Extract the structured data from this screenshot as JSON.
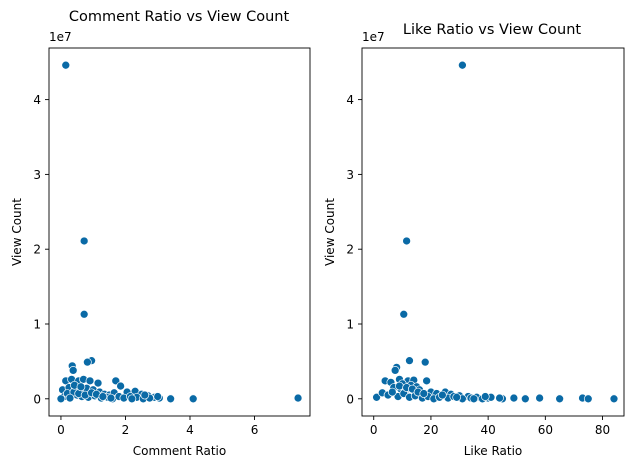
{
  "chart_data": [
    {
      "type": "scatter",
      "title": "Comment Ratio vs View Count",
      "xlabel": "Comment Ratio",
      "ylabel": "View Count",
      "xlim": [
        -0.37,
        7.72
      ],
      "ylim": [
        -2300000,
        46900000
      ],
      "x_ticks": [
        0,
        2,
        4,
        6
      ],
      "x_tick_labels": [
        "0",
        "2",
        "4",
        "6"
      ],
      "y_ticks": [
        0,
        10000000,
        20000000,
        30000000,
        40000000
      ],
      "y_tick_labels": [
        "0",
        "1",
        "2",
        "3",
        "4"
      ],
      "y_offset_label": "1e7",
      "grid": false,
      "marker_color": "#0a6aa6",
      "points": [
        [
          0.15,
          44600000
        ],
        [
          0.72,
          21100000
        ],
        [
          0.72,
          11300000
        ],
        [
          0.95,
          5100000
        ],
        [
          0.82,
          4900000
        ],
        [
          0.35,
          4400000
        ],
        [
          0.38,
          3800000
        ],
        [
          0.15,
          2400000
        ],
        [
          0.33,
          2600000
        ],
        [
          0.55,
          2400000
        ],
        [
          0.7,
          2600000
        ],
        [
          0.9,
          2400000
        ],
        [
          1.15,
          2100000
        ],
        [
          1.7,
          2400000
        ],
        [
          1.85,
          1700000
        ],
        [
          2.3,
          1000000
        ],
        [
          2.05,
          900000
        ],
        [
          0.05,
          1200000
        ],
        [
          0.25,
          1500000
        ],
        [
          0.45,
          1300000
        ],
        [
          0.6,
          1100000
        ],
        [
          0.8,
          1400000
        ],
        [
          1.0,
          1200000
        ],
        [
          1.2,
          900000
        ],
        [
          1.35,
          600000
        ],
        [
          1.5,
          500000
        ],
        [
          1.65,
          800000
        ],
        [
          2.5,
          600000
        ],
        [
          2.7,
          400000
        ],
        [
          2.9,
          200000
        ],
        [
          3.05,
          100000
        ],
        [
          3.4,
          0
        ],
        [
          4.1,
          0
        ],
        [
          7.35,
          100000
        ],
        [
          0.1,
          300000
        ],
        [
          0.3,
          200000
        ],
        [
          0.5,
          500000
        ],
        [
          0.65,
          300000
        ],
        [
          0.85,
          200000
        ],
        [
          1.05,
          400000
        ],
        [
          1.25,
          100000
        ],
        [
          1.45,
          200000
        ],
        [
          1.6,
          0
        ],
        [
          1.8,
          300000
        ],
        [
          1.95,
          100000
        ],
        [
          2.15,
          300000
        ],
        [
          2.35,
          200000
        ],
        [
          2.55,
          0
        ],
        [
          2.75,
          100000
        ],
        [
          0.0,
          0
        ],
        [
          0.2,
          700000
        ],
        [
          0.4,
          900000
        ],
        [
          0.55,
          700000
        ],
        [
          0.75,
          500000
        ],
        [
          0.95,
          800000
        ],
        [
          1.1,
          600000
        ],
        [
          1.3,
          300000
        ],
        [
          1.55,
          100000
        ],
        [
          2.2,
          0
        ],
        [
          2.6,
          500000
        ],
        [
          3.0,
          300000
        ],
        [
          0.42,
          1800000
        ],
        [
          0.62,
          1600000
        ],
        [
          0.28,
          100000
        ]
      ]
    },
    {
      "type": "scatter",
      "title": "Like Ratio vs View Count",
      "xlabel": "Like Ratio",
      "ylabel": "View Count",
      "xlim": [
        -4.1,
        87.5
      ],
      "ylim": [
        -2300000,
        46900000
      ],
      "x_ticks": [
        0,
        20,
        40,
        60,
        80
      ],
      "x_tick_labels": [
        "0",
        "20",
        "40",
        "60",
        "80"
      ],
      "y_ticks": [
        0,
        10000000,
        20000000,
        30000000,
        40000000
      ],
      "y_tick_labels": [
        "0",
        "1",
        "2",
        "3",
        "4"
      ],
      "y_offset_label": "1e7",
      "grid": false,
      "marker_color": "#0a6aa6",
      "points": [
        [
          31,
          44600000
        ],
        [
          11.5,
          21100000
        ],
        [
          10.5,
          11300000
        ],
        [
          12.5,
          5100000
        ],
        [
          18,
          4900000
        ],
        [
          8,
          4200000
        ],
        [
          7.5,
          3800000
        ],
        [
          4,
          2400000
        ],
        [
          6,
          2200000
        ],
        [
          9,
          2600000
        ],
        [
          12,
          2400000
        ],
        [
          14,
          2500000
        ],
        [
          18.5,
          2400000
        ],
        [
          10,
          2000000
        ],
        [
          13,
          1800000
        ],
        [
          15,
          1600000
        ],
        [
          7,
          1500000
        ],
        [
          9.5,
          1300000
        ],
        [
          11,
          1100000
        ],
        [
          16,
          1200000
        ],
        [
          20,
          900000
        ],
        [
          22,
          700000
        ],
        [
          25,
          900000
        ],
        [
          27,
          600000
        ],
        [
          30,
          400000
        ],
        [
          33,
          300000
        ],
        [
          36,
          200000
        ],
        [
          40,
          100000
        ],
        [
          45,
          0
        ],
        [
          49,
          100000
        ],
        [
          53,
          0
        ],
        [
          58,
          100000
        ],
        [
          65,
          0
        ],
        [
          73,
          100000
        ],
        [
          75,
          0
        ],
        [
          84,
          0
        ],
        [
          1,
          200000
        ],
        [
          3,
          800000
        ],
        [
          5,
          500000
        ],
        [
          8.5,
          300000
        ],
        [
          10.5,
          700000
        ],
        [
          12.5,
          200000
        ],
        [
          14.5,
          400000
        ],
        [
          17,
          100000
        ],
        [
          19,
          300000
        ],
        [
          21,
          0
        ],
        [
          23,
          200000
        ],
        [
          26,
          100000
        ],
        [
          28,
          300000
        ],
        [
          31,
          0
        ],
        [
          34,
          100000
        ],
        [
          38,
          0
        ],
        [
          41,
          200000
        ],
        [
          44,
          100000
        ],
        [
          6.5,
          900000
        ],
        [
          9,
          1700000
        ],
        [
          11.5,
          1500000
        ],
        [
          13.5,
          1300000
        ],
        [
          15.5,
          900000
        ],
        [
          17.5,
          700000
        ],
        [
          24,
          500000
        ],
        [
          29,
          200000
        ],
        [
          35,
          0
        ],
        [
          39,
          300000
        ]
      ]
    }
  ]
}
